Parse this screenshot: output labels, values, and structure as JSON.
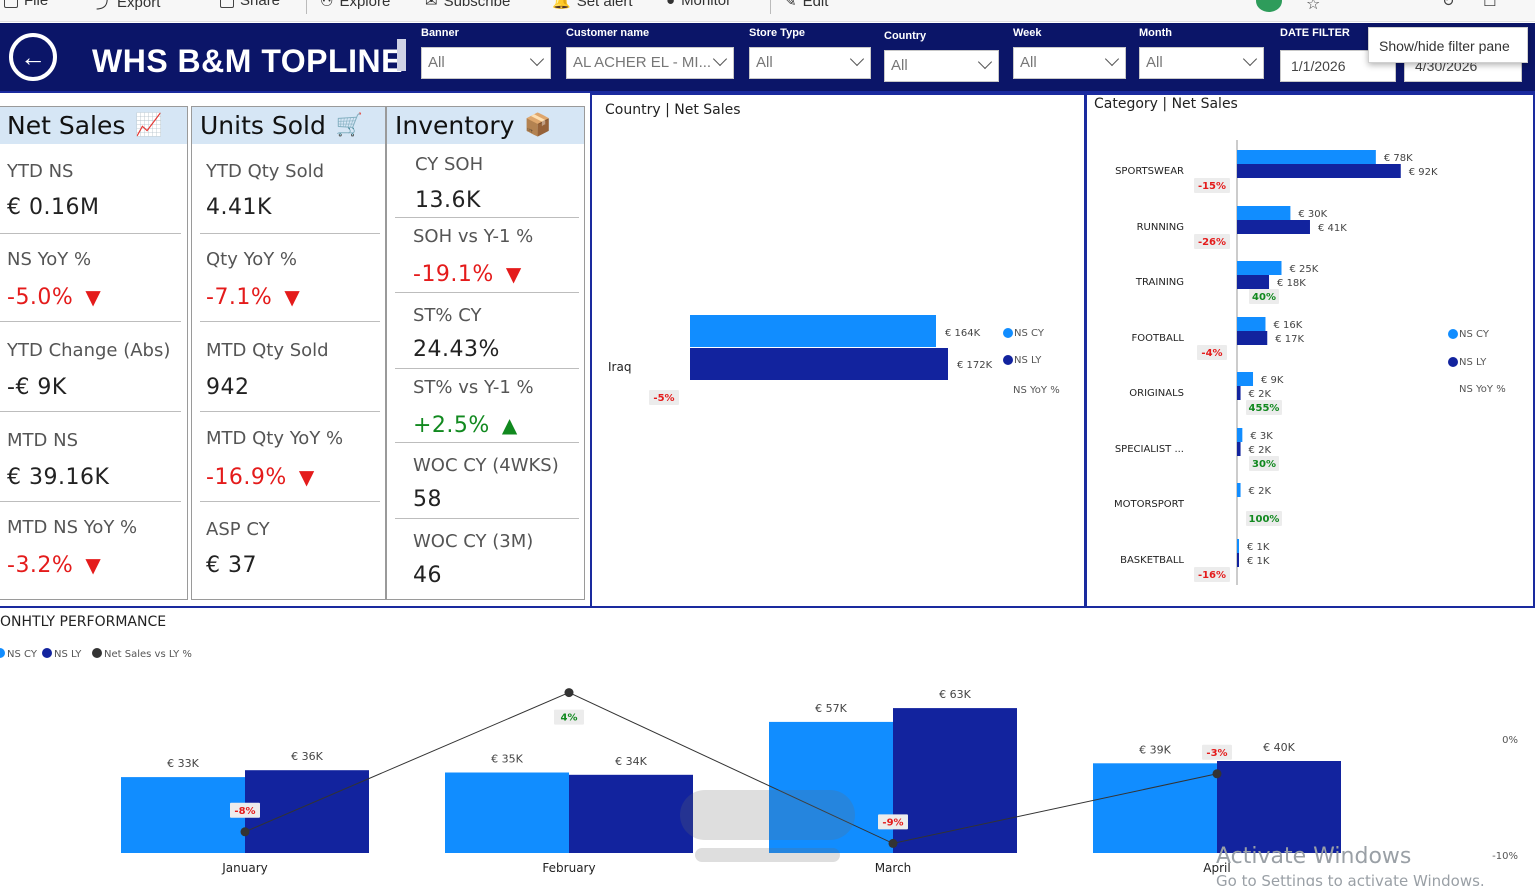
{
  "toolbar": {
    "items": [
      "File",
      "Export",
      "Share",
      "Explore",
      "Subscribe",
      "Set alert",
      "Monitor",
      "Edit"
    ]
  },
  "header": {
    "title": "WHS B&M TOPLINE",
    "tooltip": "Show/hide filter pane",
    "filters": [
      {
        "label": "Banner",
        "value": "All"
      },
      {
        "label": "Customer name",
        "value": "AL ACHER EL - MI..."
      },
      {
        "label": "Store Type",
        "value": "All"
      },
      {
        "label": "Country",
        "value": "All"
      },
      {
        "label": "Week",
        "value": "All"
      },
      {
        "label": "Month",
        "value": "All"
      }
    ],
    "date_filter": {
      "label": "DATE FILTER",
      "start": "1/1/2026",
      "end": "4/30/2026"
    }
  },
  "cards": {
    "net_sales": {
      "title": "Net Sales",
      "icon": "chart-up-icon",
      "items": [
        {
          "label": "YTD NS",
          "value": "€ 0.16M"
        },
        {
          "label": "NS YoY %",
          "value": "-5.0%",
          "trend": "down"
        },
        {
          "label": "YTD Change (Abs)",
          "value": "-€ 9K"
        },
        {
          "label": "MTD NS",
          "value": "€ 39.16K"
        },
        {
          "label": "MTD NS YoY %",
          "value": "-3.2%",
          "trend": "down"
        }
      ]
    },
    "units_sold": {
      "title": "Units Sold",
      "icon": "shopping-cart-icon",
      "items": [
        {
          "label": "YTD Qty Sold",
          "value": "4.41K"
        },
        {
          "label": "Qty YoY %",
          "value": "-7.1%",
          "trend": "down"
        },
        {
          "label": "MTD Qty Sold",
          "value": "942"
        },
        {
          "label": "MTD Qty YoY %",
          "value": "-16.9%",
          "trend": "down"
        },
        {
          "label": "ASP CY",
          "value": "€ 37"
        }
      ]
    },
    "inventory": {
      "title": "Inventory",
      "icon": "package-icon",
      "items": [
        {
          "label": "CY SOH",
          "value": "13.6K"
        },
        {
          "label": "SOH vs Y-1 %",
          "value": "-19.1%",
          "trend": "down"
        },
        {
          "label": "ST% CY",
          "value": "24.43%"
        },
        {
          "label": "ST% vs Y-1 %",
          "value": "+2.5%",
          "trend": "up"
        },
        {
          "label": "WOC CY (4WKS)",
          "value": "58"
        },
        {
          "label": "WOC CY (3M)",
          "value": "46"
        }
      ]
    }
  },
  "chart_data": [
    {
      "type": "bar",
      "title": "Country | Net Sales",
      "orientation": "horizontal",
      "categories": [
        "Iraq"
      ],
      "series": [
        {
          "name": "NS CY",
          "values": [
            164
          ],
          "labels": [
            "€ 164K"
          ],
          "color": "#118dff"
        },
        {
          "name": "NS LY",
          "values": [
            172
          ],
          "labels": [
            "€ 172K"
          ],
          "color": "#12239e"
        }
      ],
      "yoy_labels": [
        "-5%"
      ],
      "legend": [
        "NS CY",
        "NS LY",
        "NS YoY %"
      ],
      "legend_position": "right"
    },
    {
      "type": "bar",
      "title": "Category | Net Sales",
      "orientation": "horizontal",
      "categories": [
        "SPORTSWEAR",
        "RUNNING",
        "TRAINING",
        "FOOTBALL",
        "ORIGINALS",
        "SPECIALIST ...",
        "MOTORSPORT",
        "BASKETBALL"
      ],
      "series": [
        {
          "name": "NS CY",
          "values": [
            78,
            30,
            25,
            16,
            9,
            3,
            2,
            1
          ],
          "labels": [
            "€ 78K",
            "€ 30K",
            "€ 25K",
            "€ 16K",
            "€ 9K",
            "€ 3K",
            "€ 2K",
            "€ 1K"
          ],
          "color": "#118dff"
        },
        {
          "name": "NS LY",
          "values": [
            92,
            41,
            18,
            17,
            2,
            2,
            0,
            1
          ],
          "labels": [
            "€ 92K",
            "€ 41K",
            "€ 18K",
            "€ 17K",
            "€ 2K",
            "€ 2K",
            "",
            "€ 1K"
          ],
          "color": "#12239e"
        }
      ],
      "yoy_labels": [
        "-15%",
        "-26%",
        "40%",
        "-4%",
        "455%",
        "30%",
        "100%",
        "-16%"
      ],
      "legend": [
        "NS CY",
        "NS LY",
        "NS YoY %"
      ],
      "legend_position": "right"
    },
    {
      "type": "bar",
      "title": "ONHTLY PERFORMANCE",
      "categories": [
        "January",
        "February",
        "March",
        "April"
      ],
      "series": [
        {
          "name": "NS CY",
          "values": [
            33,
            35,
            57,
            39
          ],
          "labels": [
            "€ 33K",
            "€ 35K",
            "€ 57K",
            "€ 39K"
          ],
          "color": "#118dff"
        },
        {
          "name": "NS LY",
          "values": [
            36,
            34,
            63,
            40
          ],
          "labels": [
            "€ 36K",
            "€ 34K",
            "€ 63K",
            "€ 40K"
          ],
          "color": "#12239e"
        }
      ],
      "line": {
        "name": "Net Sales vs LY %",
        "values": [
          -8,
          4,
          -9,
          -3
        ],
        "labels": [
          "-8%",
          "4%",
          "-9%",
          "-3%"
        ],
        "color": "#333333"
      },
      "y2_ticks": [
        "0%",
        "-10%"
      ],
      "y2_range": [
        -10,
        0
      ],
      "legend": [
        "NS CY",
        "NS LY",
        "Net Sales vs LY %"
      ],
      "legend_position": "top-left"
    }
  ],
  "watermark": {
    "line1": "Activate Windows",
    "line2": "Go to Settings to activate Windows."
  },
  "colors": {
    "header_bg": "#0b1568",
    "ns_cy": "#118dff",
    "ns_ly": "#12239e",
    "negative": "#e41b1b",
    "positive": "#11891f",
    "card_head": "#d6e6f5"
  }
}
